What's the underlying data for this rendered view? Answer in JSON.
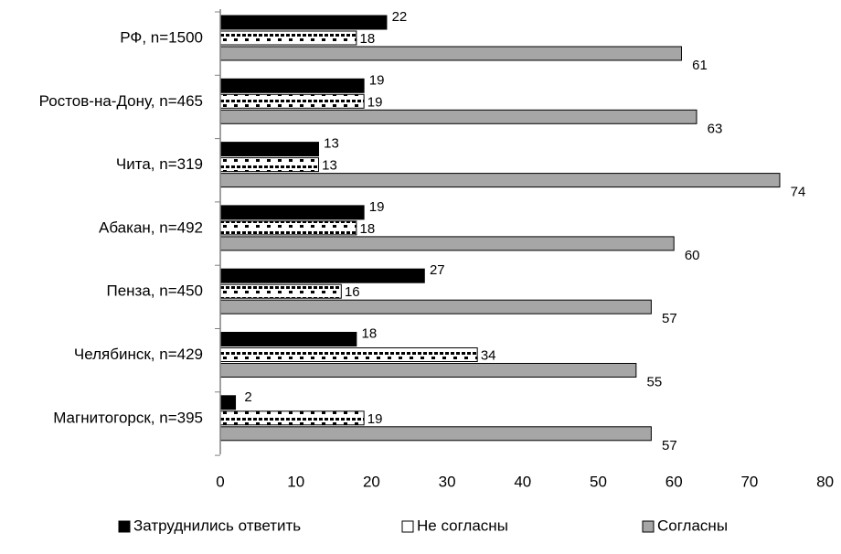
{
  "chart_data": {
    "type": "bar",
    "orientation": "horizontal",
    "categories": [
      "РФ, n=1500",
      "Ростов-на-Дону, n=465",
      "Чита, n=319",
      "Абакан, n=492",
      "Пенза, n=450",
      "Челябинск, n=429",
      "Магнитогорск, n=395"
    ],
    "series": [
      {
        "name": "Затруднились ответить",
        "values": [
          22,
          19,
          13,
          19,
          27,
          18,
          2
        ],
        "color": "#000000",
        "pattern": "solid"
      },
      {
        "name": "Не согласны",
        "values": [
          18,
          19,
          13,
          18,
          16,
          34,
          19
        ],
        "color": "#ffffff",
        "pattern": "brick"
      },
      {
        "name": "Согласны",
        "values": [
          61,
          63,
          74,
          60,
          57,
          55,
          57
        ],
        "color": "#a6a6a6",
        "pattern": "solid"
      }
    ],
    "xlim": [
      0,
      80
    ],
    "xticks": [
      "0",
      "10",
      "20",
      "30",
      "40",
      "50",
      "60",
      "70",
      "80"
    ],
    "grid": false,
    "legend_position": "bottom"
  }
}
